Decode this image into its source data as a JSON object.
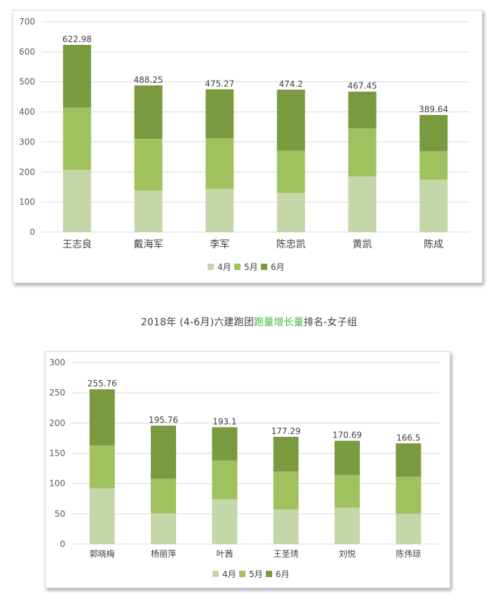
{
  "colors": {
    "apr": "#c5d6a9",
    "may": "#9fc25f",
    "jun": "#7a9a40",
    "grid": "#d9d9d9",
    "highlight": "#3cb83c"
  },
  "heading": {
    "prefix": "2018年 (4-6月)六建跑团",
    "highlight": "跑量增长量",
    "suffix": "排名-女子组"
  },
  "chart_data": [
    {
      "type": "bar",
      "stacked": true,
      "title": "",
      "categories": [
        "王志良",
        "戴海军",
        "李军",
        "陈忠凯",
        "黄凯",
        "陈成"
      ],
      "series": [
        {
          "name": "4月",
          "values": [
            207,
            138,
            144,
            130,
            185,
            175
          ]
        },
        {
          "name": "5月",
          "values": [
            208,
            172,
            168,
            141,
            160,
            94
          ]
        },
        {
          "name": "6月",
          "values": [
            207.98,
            178.25,
            163.27,
            203.2,
            122.45,
            120.64
          ]
        }
      ],
      "totals": [
        "622.98",
        "488.25",
        "475.27",
        "474.2",
        "467.45",
        "389.64"
      ],
      "yticks": [
        "0",
        "100",
        "200",
        "300",
        "400",
        "500",
        "600",
        "700"
      ],
      "ylim": [
        0,
        700
      ],
      "legend": "bottom",
      "grid": true
    },
    {
      "type": "bar",
      "stacked": true,
      "title": "",
      "categories": [
        "郭晓梅",
        "杨丽萍",
        "叶茜",
        "王圣琇",
        "刘悦",
        "陈伟琼"
      ],
      "series": [
        {
          "name": "4月",
          "values": [
            92,
            51,
            74,
            57,
            60,
            50
          ]
        },
        {
          "name": "5月",
          "values": [
            71,
            57,
            64,
            63,
            54,
            61
          ]
        },
        {
          "name": "6月",
          "values": [
            92.76,
            87.76,
            55.1,
            57.29,
            56.69,
            55.5
          ]
        }
      ],
      "totals": [
        "255.76",
        "195.76",
        "193.1",
        "177.29",
        "170.69",
        "166.5"
      ],
      "yticks": [
        "0",
        "50",
        "100",
        "150",
        "200",
        "250",
        "300"
      ],
      "ylim": [
        0,
        300
      ],
      "legend": "bottom",
      "grid": true
    }
  ]
}
